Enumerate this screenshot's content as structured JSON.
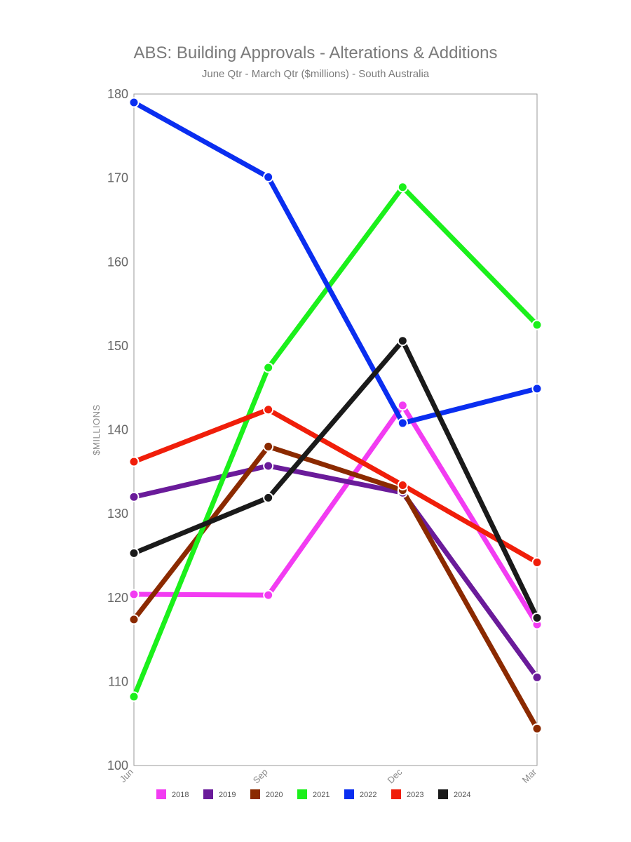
{
  "chart_data": {
    "type": "line",
    "title": "ABS: Building Approvals - Alterations & Additions",
    "subtitle": "June Qtr - March Qtr ($millions) - South Australia",
    "ylabel": "$MILLIONS",
    "xlabel": "",
    "categories": [
      "Jun",
      "Sep",
      "Dec",
      "Mar"
    ],
    "ylim": [
      100,
      180
    ],
    "yticks": [
      100,
      110,
      120,
      130,
      140,
      150,
      160,
      170,
      180
    ],
    "grid": false,
    "legend_position": "bottom",
    "series": [
      {
        "name": "2018",
        "color": "#f23cf2",
        "values": [
          120.4,
          120.3,
          142.9,
          116.8
        ]
      },
      {
        "name": "2019",
        "color": "#6a1b9a",
        "values": [
          132.0,
          135.7,
          132.5,
          110.5
        ]
      },
      {
        "name": "2020",
        "color": "#8b2a00",
        "values": [
          117.4,
          138.0,
          132.8,
          104.4
        ]
      },
      {
        "name": "2021",
        "color": "#1bf01b",
        "values": [
          108.2,
          147.4,
          168.9,
          152.5
        ]
      },
      {
        "name": "2022",
        "color": "#0a2ef0",
        "values": [
          179.0,
          170.1,
          140.8,
          144.9
        ]
      },
      {
        "name": "2023",
        "color": "#f01e0a",
        "values": [
          136.2,
          142.4,
          133.4,
          124.2
        ]
      },
      {
        "name": "2024",
        "color": "#1a1a1a",
        "values": [
          125.3,
          131.9,
          150.6,
          117.6
        ]
      }
    ]
  }
}
